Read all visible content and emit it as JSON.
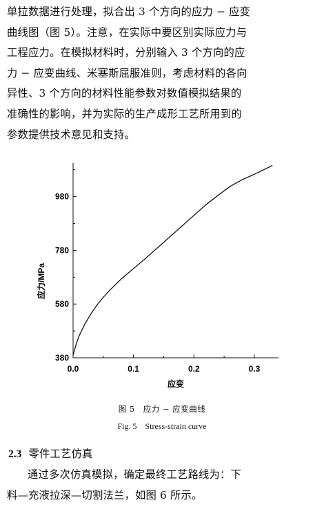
{
  "paragraph1": {
    "lines": [
      "单拉数据进行处理，拟合出 3 个方向的应力 − 应变",
      "曲线图（图 5）。注意，在实际中要区别实际应力与",
      "工程应力。在模拟材料时，分别输入 3 个方向的应",
      "力 − 应变曲线、米塞斯屈服准则，考虑材料的各向",
      "异性、3 个方向的材料性能参数对数值模拟结果的",
      "准确性的影响，并为实际的生产成形工艺所用到的",
      "参数提供技术意见和支持。"
    ]
  },
  "figure": {
    "caption_cn": "图 5　应力 − 应变曲线",
    "caption_en": "Fig. 5　Stress-strain curve"
  },
  "chart_data": {
    "type": "line",
    "title": "",
    "xlabel": "应变",
    "ylabel": "应力/MPa",
    "xlim": [
      0,
      0.34
    ],
    "ylim": [
      380,
      1105
    ],
    "xticks": [
      0.0,
      0.1,
      0.2,
      0.3
    ],
    "xtick_labels": [
      "0.0",
      "0.1",
      "0.2",
      "0.3"
    ],
    "yticks": [
      380,
      580,
      780,
      980
    ],
    "ytick_labels": [
      "380",
      "580",
      "780",
      "980"
    ],
    "grid": false,
    "legend": "none",
    "series": [
      {
        "x": [
          0.0,
          0.005,
          0.01,
          0.02,
          0.03,
          0.04,
          0.05,
          0.06,
          0.08,
          0.1,
          0.12,
          0.14,
          0.16,
          0.18,
          0.2,
          0.22,
          0.24,
          0.26,
          0.28,
          0.3,
          0.32,
          0.33
        ],
        "y": [
          390,
          430,
          462,
          508,
          545,
          578,
          605,
          630,
          674,
          712,
          750,
          790,
          830,
          870,
          910,
          950,
          985,
          1018,
          1043,
          1063,
          1085,
          1096
        ]
      }
    ]
  },
  "section": {
    "number": "2.3",
    "title": "零件工艺仿真"
  },
  "paragraph2": {
    "lines": [
      "通过多次仿真模拟，确定最终工艺路线为：下",
      "料—充液拉深—切割法兰，如图 6 所示。"
    ]
  }
}
